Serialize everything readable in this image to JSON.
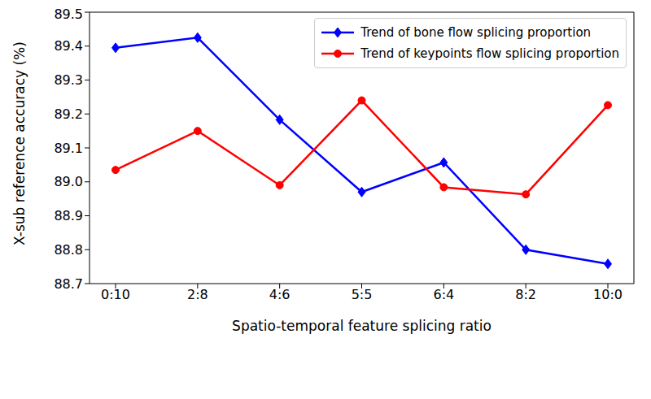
{
  "chart_data": {
    "type": "line",
    "x_label": "Spatio-temporal feature splicing ratio",
    "y_label": "X-sub reference accuracy (%)",
    "categories": [
      "0:10",
      "2:8",
      "4:6",
      "5:5",
      "6:4",
      "8:2",
      "10:0"
    ],
    "series": [
      {
        "name": "Trend of bone flow splicing proportion",
        "color": "#0000ff",
        "marker": "diamond",
        "line_style": "solid",
        "values": [
          89.395,
          89.425,
          89.183,
          88.97,
          89.057,
          88.8,
          88.758
        ]
      },
      {
        "name": "Trend of keypoints flow splicing proportion",
        "color": "#ff0000",
        "marker": "circle",
        "line_style": "solid",
        "values": [
          89.035,
          89.15,
          88.99,
          89.24,
          88.984,
          88.963,
          89.226
        ]
      }
    ],
    "ylim": [
      88.7,
      89.5
    ],
    "yticks": [
      88.7,
      88.8,
      88.9,
      {
        "value": 89,
        "label": "89.0"
      },
      89.1,
      89.2,
      89.3,
      89.4,
      89.5
    ],
    "grid": false,
    "legend": "upper right"
  }
}
